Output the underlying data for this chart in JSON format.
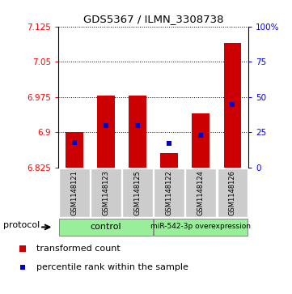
{
  "title": "GDS5367 / ILMN_3308738",
  "samples": [
    "GSM1148121",
    "GSM1148123",
    "GSM1148125",
    "GSM1148122",
    "GSM1148124",
    "GSM1148126"
  ],
  "transformed_counts": [
    6.9,
    6.978,
    6.978,
    6.856,
    6.94,
    7.09
  ],
  "percentile_ranks": [
    18,
    30,
    30,
    17,
    23,
    45
  ],
  "ylim_left": [
    6.825,
    7.125
  ],
  "ylim_right": [
    0,
    100
  ],
  "yticks_left": [
    6.825,
    6.9,
    6.975,
    7.05,
    7.125
  ],
  "yticks_right": [
    0,
    25,
    50,
    75,
    100
  ],
  "bar_color": "#cc0000",
  "percentile_color": "#0000cc",
  "bar_bottom": 6.825,
  "bar_width": 0.55,
  "control_color": "#99ee99",
  "overexp_color": "#99ee99",
  "group_label_control": "control",
  "group_label_overexp": "miR-542-3p overexpression",
  "legend_red": "transformed count",
  "legend_blue": "percentile rank within the sample",
  "protocol_label": "protocol"
}
